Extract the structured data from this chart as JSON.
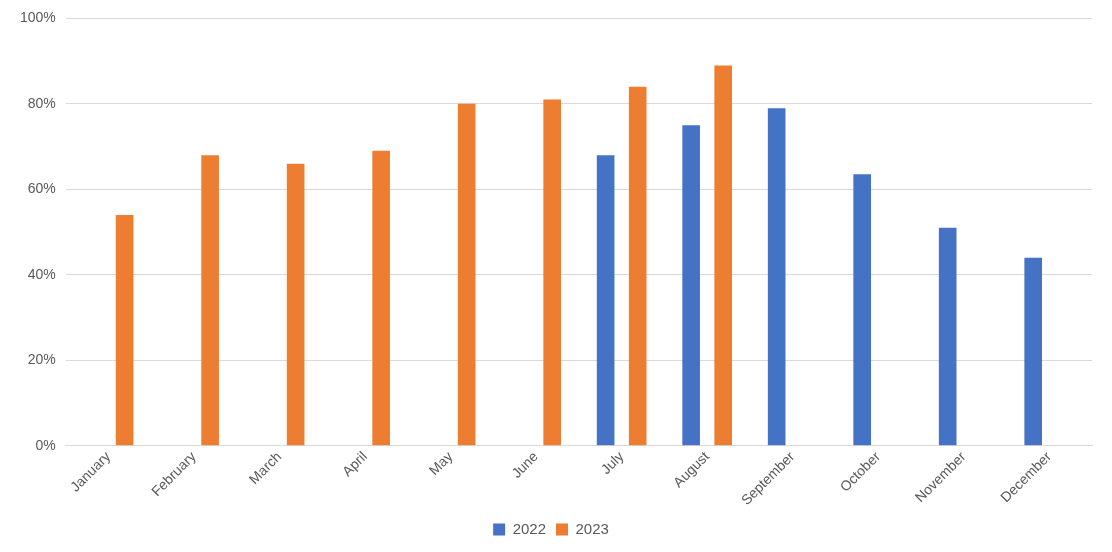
{
  "chart_data": {
    "type": "bar",
    "categories": [
      "January",
      "February",
      "March",
      "April",
      "May",
      "June",
      "July",
      "August",
      "September",
      "October",
      "November",
      "December"
    ],
    "series": [
      {
        "name": "2022",
        "color": "#4472c4",
        "values": [
          null,
          null,
          null,
          null,
          null,
          null,
          68,
          75,
          79,
          63.5,
          51,
          44
        ]
      },
      {
        "name": "2023",
        "color": "#ed7d31",
        "values": [
          54,
          68,
          66,
          69,
          80,
          81,
          84,
          89,
          null,
          null,
          null,
          null
        ]
      }
    ],
    "ylim": [
      0,
      100
    ],
    "yticks": [
      {
        "value": 0,
        "label": "0%"
      },
      {
        "value": 20,
        "label": "20%"
      },
      {
        "value": 40,
        "label": "40%"
      },
      {
        "value": 60,
        "label": "60%"
      },
      {
        "value": 80,
        "label": "80%"
      },
      {
        "value": 100,
        "label": "100%"
      }
    ],
    "grid": "y",
    "legend": "bottom"
  }
}
